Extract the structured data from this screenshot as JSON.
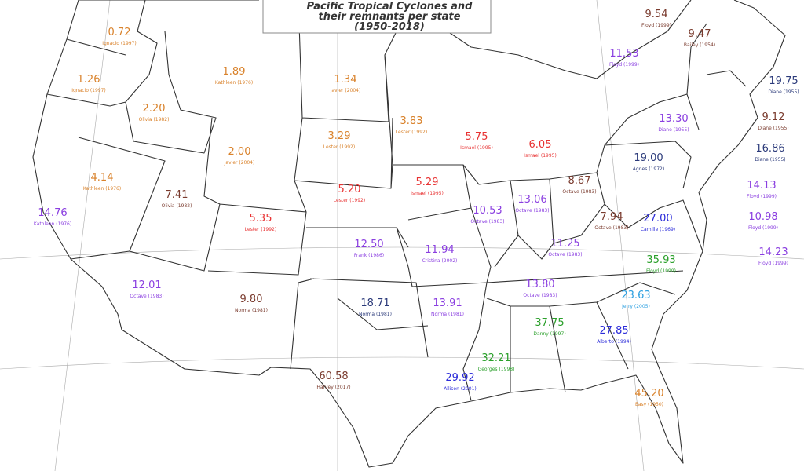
{
  "title": {
    "lines": [
      "Pacific Tropical Cyclones and",
      "their remnants per state",
      "(1950-2018)"
    ]
  },
  "states": [
    {
      "value": "0.72",
      "storm": "Ignacio (1997)",
      "color": "#d9822b"
    },
    {
      "value": "1.26",
      "storm": "Ignacio (1997)",
      "color": "#d9822b"
    },
    {
      "value": "2.20",
      "storm": "Olivia (1982)",
      "color": "#d9822b"
    },
    {
      "value": "1.89",
      "storm": "Kathleen (1976)",
      "color": "#d9822b"
    },
    {
      "value": "1.34",
      "storm": "Javier (2004)",
      "color": "#d9822b"
    },
    {
      "value": "3.83",
      "storm": "Lester (1992)",
      "color": "#d9822b"
    },
    {
      "value": "3.29",
      "storm": "Lester (1992)",
      "color": "#d9822b"
    },
    {
      "value": "2.00",
      "storm": "Javier (2004)",
      "color": "#d9822b"
    },
    {
      "value": "4.14",
      "storm": "Kathleen (1976)",
      "color": "#d9822b"
    },
    {
      "value": "14.76",
      "storm": "Kathleen (1976)",
      "color": "#8a3ee0"
    },
    {
      "value": "7.41",
      "storm": "Olivia (1982)",
      "color": "#7a3b2e"
    },
    {
      "value": "5.35",
      "storm": "Lester (1992)",
      "color": "#e83232"
    },
    {
      "value": "5.20",
      "storm": "Lester (1992)",
      "color": "#e83232"
    },
    {
      "value": "5.29",
      "storm": "Ismael (1995)",
      "color": "#e83232"
    },
    {
      "value": "5.75",
      "storm": "Ismael (1995)",
      "color": "#e83232"
    },
    {
      "value": "6.05",
      "storm": "Ismael (1995)",
      "color": "#e83232"
    },
    {
      "value": "12.50",
      "storm": "Frank (1986)",
      "color": "#8a3ee0"
    },
    {
      "value": "11.94",
      "storm": "Cristina (2002)",
      "color": "#8a3ee0"
    },
    {
      "value": "10.53",
      "storm": "Octave (1983)",
      "color": "#8a3ee0"
    },
    {
      "value": "13.06",
      "storm": "Octave (1983)",
      "color": "#8a3ee0"
    },
    {
      "value": "8.67",
      "storm": "Octave (1983)",
      "color": "#7a3b2e"
    },
    {
      "value": "7.94",
      "storm": "Octave (1983)",
      "color": "#7a3b2e"
    },
    {
      "value": "11.25",
      "storm": "Octave (1983)",
      "color": "#8a3ee0"
    },
    {
      "value": "12.01",
      "storm": "Octave (1983)",
      "color": "#8a3ee0"
    },
    {
      "value": "9.80",
      "storm": "Norma (1981)",
      "color": "#7a3b2e"
    },
    {
      "value": "18.71",
      "storm": "Norma (1981)",
      "color": "#2b3a7a"
    },
    {
      "value": "13.91",
      "storm": "Norma (1981)",
      "color": "#8a3ee0"
    },
    {
      "value": "13.80",
      "storm": "Octave (1983)",
      "color": "#8a3ee0"
    },
    {
      "value": "60.58",
      "storm": "Harvey (2017)",
      "color": "#7a3b2e"
    },
    {
      "value": "29.92",
      "storm": "Allison (2001)",
      "color": "#2b2bd9"
    },
    {
      "value": "32.21",
      "storm": "Georges (1998)",
      "color": "#2ba02b"
    },
    {
      "value": "37.75",
      "storm": "Danny (1997)",
      "color": "#2ba02b"
    },
    {
      "value": "27.85",
      "storm": "Alberto (1994)",
      "color": "#2b2bd9"
    },
    {
      "value": "23.63",
      "storm": "Jerry (2005)",
      "color": "#2b9fe0"
    },
    {
      "value": "35.93",
      "storm": "Floyd (1999)",
      "color": "#2ba02b"
    },
    {
      "value": "27.00",
      "storm": "Camille (1969)",
      "color": "#2b2bd9"
    },
    {
      "value": "45.20",
      "storm": "Easy (1950)",
      "color": "#d9822b"
    },
    {
      "value": "19.00",
      "storm": "Agnes (1972)",
      "color": "#2b3a7a"
    },
    {
      "value": "11.53",
      "storm": "Floyd (1999)",
      "color": "#8a3ee0"
    },
    {
      "value": "9.54",
      "storm": "Floyd (1999)",
      "color": "#7a3b2e"
    },
    {
      "value": "9.47",
      "storm": "Bailey (1954)",
      "color": "#7a3b2e"
    },
    {
      "value": "19.75",
      "storm": "Diane (1955)",
      "color": "#2b3a7a"
    },
    {
      "value": "13.30",
      "storm": "Diane (1955)",
      "color": "#8a3ee0"
    },
    {
      "value": "9.12",
      "storm": "Diane (1955)",
      "color": "#7a3b2e"
    },
    {
      "value": "16.86",
      "storm": "Diane (1955)",
      "color": "#2b3a7a"
    },
    {
      "value": "14.13",
      "storm": "Floyd (1999)",
      "color": "#8a3ee0"
    },
    {
      "value": "10.98",
      "storm": "Floyd (1999)",
      "color": "#8a3ee0"
    },
    {
      "value": "14.23",
      "storm": "Floyd (1999)",
      "color": "#8a3ee0"
    }
  ]
}
